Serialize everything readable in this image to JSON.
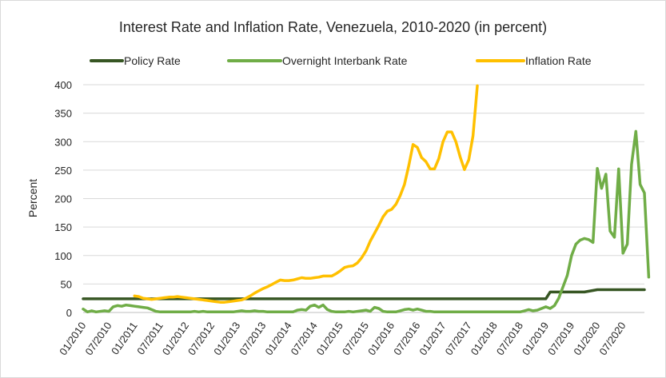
{
  "chart_data": {
    "type": "line",
    "title": "Interest Rate and Inflation Rate, Venezuela, 2010-2020 (in percent)",
    "xlabel": "",
    "ylabel": "Percent",
    "ylim": [
      0,
      400
    ],
    "yticks": [
      0,
      50,
      100,
      150,
      200,
      250,
      300,
      350,
      400
    ],
    "xlim": [
      "2010-01",
      "2020-12"
    ],
    "xticks": [
      "01/2010",
      "07/2010",
      "01/2011",
      "07/2011",
      "01/2012",
      "07/2012",
      "01/2013",
      "07/2013",
      "01/2014",
      "07/2014",
      "01/2015",
      "07/2015",
      "01/2016",
      "07/2016",
      "01/2017",
      "07/2017",
      "01/2018",
      "07/2018",
      "01/2019",
      "07/2019",
      "01/2020",
      "07/2020"
    ],
    "grid": "horizontal",
    "legend": "top",
    "series": [
      {
        "name": "Policy Rate",
        "color": "#375623",
        "points": [
          [
            "2010-01",
            24
          ],
          [
            "2019-01",
            24
          ],
          [
            "2019-02",
            36
          ],
          [
            "2019-10",
            36
          ],
          [
            "2020-01",
            40
          ],
          [
            "2020-12",
            40
          ]
        ]
      },
      {
        "name": "Overnight Interbank Rate",
        "color": "#70ad47",
        "points": [
          [
            "2010-01",
            6
          ],
          [
            "2010-02",
            1
          ],
          [
            "2010-03",
            3
          ],
          [
            "2010-04",
            1
          ],
          [
            "2010-05",
            2
          ],
          [
            "2010-06",
            3
          ],
          [
            "2010-07",
            2
          ],
          [
            "2010-08",
            10
          ],
          [
            "2010-09",
            12
          ],
          [
            "2010-10",
            11
          ],
          [
            "2010-11",
            13
          ],
          [
            "2010-12",
            12
          ],
          [
            "2011-01",
            11
          ],
          [
            "2011-02",
            10
          ],
          [
            "2011-03",
            9
          ],
          [
            "2011-04",
            8
          ],
          [
            "2011-05",
            5
          ],
          [
            "2011-06",
            2
          ],
          [
            "2011-07",
            1
          ],
          [
            "2011-08",
            1
          ],
          [
            "2011-09",
            1
          ],
          [
            "2011-10",
            1
          ],
          [
            "2011-11",
            1
          ],
          [
            "2011-12",
            1
          ],
          [
            "2012-01",
            1
          ],
          [
            "2012-02",
            1
          ],
          [
            "2012-03",
            2
          ],
          [
            "2012-04",
            1
          ],
          [
            "2012-05",
            2
          ],
          [
            "2012-06",
            1
          ],
          [
            "2012-07",
            1
          ],
          [
            "2012-08",
            1
          ],
          [
            "2012-09",
            1
          ],
          [
            "2012-10",
            1
          ],
          [
            "2012-11",
            1
          ],
          [
            "2012-12",
            1
          ],
          [
            "2013-01",
            2
          ],
          [
            "2013-02",
            3
          ],
          [
            "2013-03",
            2
          ],
          [
            "2013-04",
            2
          ],
          [
            "2013-05",
            3
          ],
          [
            "2013-06",
            2
          ],
          [
            "2013-07",
            2
          ],
          [
            "2013-08",
            1
          ],
          [
            "2013-09",
            1
          ],
          [
            "2013-10",
            1
          ],
          [
            "2013-11",
            1
          ],
          [
            "2013-12",
            1
          ],
          [
            "2014-01",
            1
          ],
          [
            "2014-02",
            1
          ],
          [
            "2014-03",
            4
          ],
          [
            "2014-04",
            5
          ],
          [
            "2014-05",
            4
          ],
          [
            "2014-06",
            11
          ],
          [
            "2014-07",
            13
          ],
          [
            "2014-08",
            9
          ],
          [
            "2014-09",
            13
          ],
          [
            "2014-10",
            5
          ],
          [
            "2014-11",
            2
          ],
          [
            "2014-12",
            1
          ],
          [
            "2015-01",
            1
          ],
          [
            "2015-02",
            1
          ],
          [
            "2015-03",
            2
          ],
          [
            "2015-04",
            1
          ],
          [
            "2015-05",
            2
          ],
          [
            "2015-06",
            3
          ],
          [
            "2015-07",
            4
          ],
          [
            "2015-08",
            2
          ],
          [
            "2015-09",
            9
          ],
          [
            "2015-10",
            7
          ],
          [
            "2015-11",
            2
          ],
          [
            "2015-12",
            1
          ],
          [
            "2016-01",
            1
          ],
          [
            "2016-02",
            1
          ],
          [
            "2016-03",
            3
          ],
          [
            "2016-04",
            5
          ],
          [
            "2016-05",
            6
          ],
          [
            "2016-06",
            4
          ],
          [
            "2016-07",
            6
          ],
          [
            "2016-08",
            4
          ],
          [
            "2016-09",
            2
          ],
          [
            "2016-10",
            2
          ],
          [
            "2016-11",
            1
          ],
          [
            "2016-12",
            1
          ],
          [
            "2017-01",
            1
          ],
          [
            "2017-06",
            1
          ],
          [
            "2017-12",
            1
          ],
          [
            "2018-06",
            1
          ],
          [
            "2018-07",
            1
          ],
          [
            "2018-08",
            3
          ],
          [
            "2018-09",
            5
          ],
          [
            "2018-10",
            3
          ],
          [
            "2018-11",
            4
          ],
          [
            "2018-12",
            7
          ],
          [
            "2019-01",
            10
          ],
          [
            "2019-02",
            7
          ],
          [
            "2019-03",
            12
          ],
          [
            "2019-04",
            25
          ],
          [
            "2019-05",
            45
          ],
          [
            "2019-06",
            65
          ],
          [
            "2019-07",
            100
          ],
          [
            "2019-08",
            120
          ],
          [
            "2019-09",
            127
          ],
          [
            "2019-10",
            130
          ],
          [
            "2019-11",
            128
          ],
          [
            "2019-12",
            123
          ],
          [
            "2020-01",
            253
          ],
          [
            "2020-02",
            218
          ],
          [
            "2020-03",
            243
          ],
          [
            "2020-04",
            143
          ],
          [
            "2020-05",
            132
          ],
          [
            "2020-06",
            252
          ],
          [
            "2020-07",
            104
          ],
          [
            "2020-08",
            120
          ],
          [
            "2020-09",
            260
          ],
          [
            "2020-10",
            318
          ],
          [
            "2020-11",
            225
          ],
          [
            "2020-12",
            210
          ],
          [
            "2021-01",
            62
          ]
        ]
      },
      {
        "name": "Inflation Rate",
        "color": "#ffc000",
        "points": [
          [
            "2011-01",
            29
          ],
          [
            "2011-02",
            28
          ],
          [
            "2011-03",
            25
          ],
          [
            "2011-04",
            24
          ],
          [
            "2011-05",
            23
          ],
          [
            "2011-06",
            24
          ],
          [
            "2011-07",
            25
          ],
          [
            "2011-08",
            26
          ],
          [
            "2011-09",
            27
          ],
          [
            "2011-10",
            27
          ],
          [
            "2011-11",
            28
          ],
          [
            "2011-12",
            27
          ],
          [
            "2012-01",
            26
          ],
          [
            "2012-02",
            25
          ],
          [
            "2012-03",
            24
          ],
          [
            "2012-04",
            23
          ],
          [
            "2012-05",
            22
          ],
          [
            "2012-06",
            21
          ],
          [
            "2012-07",
            20
          ],
          [
            "2012-08",
            19
          ],
          [
            "2012-09",
            18
          ],
          [
            "2012-10",
            18
          ],
          [
            "2012-11",
            19
          ],
          [
            "2012-12",
            20
          ],
          [
            "2013-01",
            21
          ],
          [
            "2013-02",
            22
          ],
          [
            "2013-03",
            25
          ],
          [
            "2013-04",
            29
          ],
          [
            "2013-05",
            34
          ],
          [
            "2013-06",
            38
          ],
          [
            "2013-07",
            42
          ],
          [
            "2013-08",
            45
          ],
          [
            "2013-09",
            49
          ],
          [
            "2013-10",
            53
          ],
          [
            "2013-11",
            57
          ],
          [
            "2013-12",
            56
          ],
          [
            "2014-01",
            56
          ],
          [
            "2014-02",
            57
          ],
          [
            "2014-03",
            59
          ],
          [
            "2014-04",
            61
          ],
          [
            "2014-05",
            60
          ],
          [
            "2014-06",
            60
          ],
          [
            "2014-07",
            61
          ],
          [
            "2014-08",
            62
          ],
          [
            "2014-09",
            64
          ],
          [
            "2014-10",
            64
          ],
          [
            "2014-11",
            64
          ],
          [
            "2014-12",
            68
          ],
          [
            "2015-01",
            73
          ],
          [
            "2015-02",
            79
          ],
          [
            "2015-03",
            81
          ],
          [
            "2015-04",
            82
          ],
          [
            "2015-05",
            87
          ],
          [
            "2015-06",
            96
          ],
          [
            "2015-07",
            108
          ],
          [
            "2015-08",
            125
          ],
          [
            "2015-09",
            139
          ],
          [
            "2015-10",
            153
          ],
          [
            "2015-11",
            168
          ],
          [
            "2015-12",
            178
          ],
          [
            "2016-01",
            181
          ],
          [
            "2016-02",
            190
          ],
          [
            "2016-03",
            205
          ],
          [
            "2016-04",
            225
          ],
          [
            "2016-05",
            258
          ],
          [
            "2016-06",
            295
          ],
          [
            "2016-07",
            290
          ],
          [
            "2016-08",
            272
          ],
          [
            "2016-09",
            265
          ],
          [
            "2016-10",
            252
          ],
          [
            "2016-11",
            252
          ],
          [
            "2016-12",
            270
          ],
          [
            "2017-01",
            300
          ],
          [
            "2017-02",
            317
          ],
          [
            "2017-03",
            317
          ],
          [
            "2017-04",
            300
          ],
          [
            "2017-05",
            273
          ],
          [
            "2017-06",
            251
          ],
          [
            "2017-07",
            268
          ],
          [
            "2017-08",
            310
          ],
          [
            "2017-09",
            398
          ]
        ]
      }
    ]
  }
}
